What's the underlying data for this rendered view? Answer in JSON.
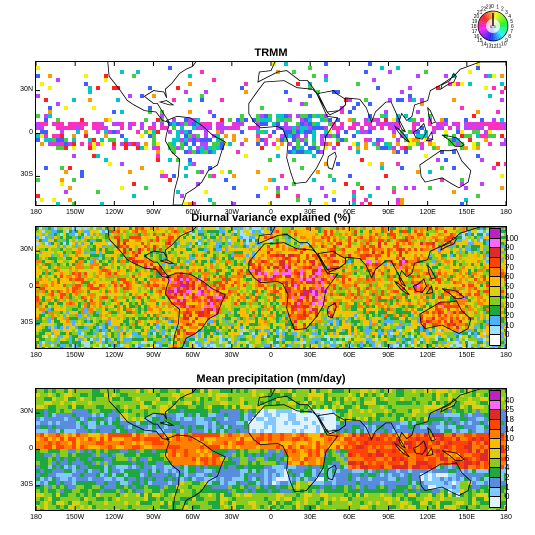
{
  "chart_data": [
    {
      "type": "heatmap",
      "title": "TRMM",
      "x_ticks": [
        "180",
        "150W",
        "120W",
        "90W",
        "60W",
        "30W",
        "0",
        "30E",
        "60E",
        "90E",
        "120E",
        "150E",
        "180"
      ],
      "y_ticks": [
        "30N",
        "0",
        "30S"
      ],
      "phase_wheel_hours": [
        "0",
        "1",
        "2",
        "3",
        "4",
        "5",
        "6",
        "7",
        "8",
        "9",
        "10",
        "11",
        "12",
        "13",
        "14",
        "15",
        "16",
        "17",
        "18",
        "19",
        "20",
        "21",
        "22",
        "23"
      ],
      "phase_wheel_center_value": "0.3"
    },
    {
      "type": "heatmap",
      "title": "Diurnal variance explained (%)",
      "x_ticks": [
        "180",
        "150W",
        "120W",
        "90W",
        "60W",
        "30W",
        "0",
        "30E",
        "60E",
        "90E",
        "120E",
        "150E",
        "180"
      ],
      "y_ticks": [
        "30N",
        "0",
        "30S"
      ],
      "colorbar_labels": [
        "100",
        "90",
        "80",
        "70",
        "60",
        "50",
        "40",
        "30",
        "20",
        "10",
        "0"
      ],
      "colorbar_colors": [
        "#c020c0",
        "#ff66ff",
        "#dd2a2a",
        "#ff4400",
        "#ff7f00",
        "#ffbb00",
        "#ddd010",
        "#88cc20",
        "#20a840",
        "#4fb0ff",
        "#a0e0ff",
        "#ffffff"
      ]
    },
    {
      "type": "heatmap",
      "title": "Mean precipitation (mm/day)",
      "x_ticks": [
        "180",
        "150W",
        "120W",
        "90W",
        "60W",
        "30W",
        "0",
        "30E",
        "60E",
        "90E",
        "120E",
        "150E",
        "180"
      ],
      "y_ticks": [
        "30N",
        "0",
        "30S"
      ],
      "colorbar_labels": [
        "40",
        "25",
        "18",
        "14",
        "10",
        "8",
        "6",
        "4",
        "2",
        "1",
        "0"
      ],
      "colorbar_colors": [
        "#c020c0",
        "#ff66ff",
        "#dd2a2a",
        "#ff4400",
        "#ff7f00",
        "#ffbb00",
        "#ddd010",
        "#88cc20",
        "#20a840",
        "#5a8cdd",
        "#80c8ff",
        "#dff3ff"
      ]
    }
  ]
}
